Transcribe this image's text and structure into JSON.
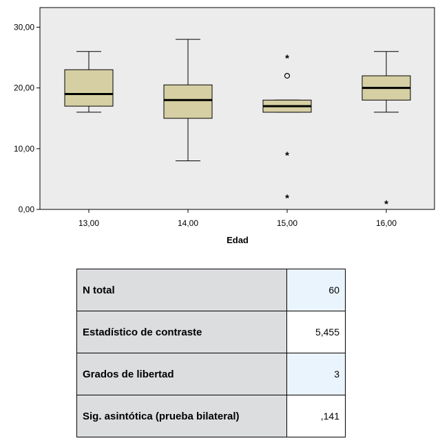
{
  "chart_data": {
    "type": "boxplot",
    "xlabel": "Edad",
    "ylabel": "",
    "ylim": [
      0,
      30
    ],
    "yticks": [
      "0,00",
      "10,00",
      "20,00",
      "30,00"
    ],
    "categories": [
      "13,00",
      "14,00",
      "15,00",
      "16,00"
    ],
    "boxes": [
      {
        "min": 16,
        "q1": 17,
        "median": 19,
        "q3": 23,
        "max": 26,
        "outliers": [],
        "extremes": []
      },
      {
        "min": 8,
        "q1": 15,
        "median": 18,
        "q3": 20.5,
        "max": 28,
        "outliers": [],
        "extremes": []
      },
      {
        "min": 16,
        "q1": 16,
        "median": 17,
        "q3": 18,
        "max": 18,
        "outliers": [
          22
        ],
        "extremes": [
          25,
          9,
          2
        ]
      },
      {
        "min": 16,
        "q1": 18,
        "median": 20,
        "q3": 22,
        "max": 26,
        "outliers": [],
        "extremes": [
          1
        ]
      }
    ],
    "colors": {
      "box_fill": "#d6cfa3",
      "plot_bg": "#ececec",
      "median": "#000000"
    }
  },
  "table": {
    "rows": [
      {
        "label": "N total",
        "value": "60"
      },
      {
        "label": "Estadístico de contraste",
        "value": "5,455"
      },
      {
        "label": "Grados de libertad",
        "value": "3"
      },
      {
        "label": "Sig. asintótica (prueba bilateral)",
        "value": ",141"
      }
    ]
  }
}
